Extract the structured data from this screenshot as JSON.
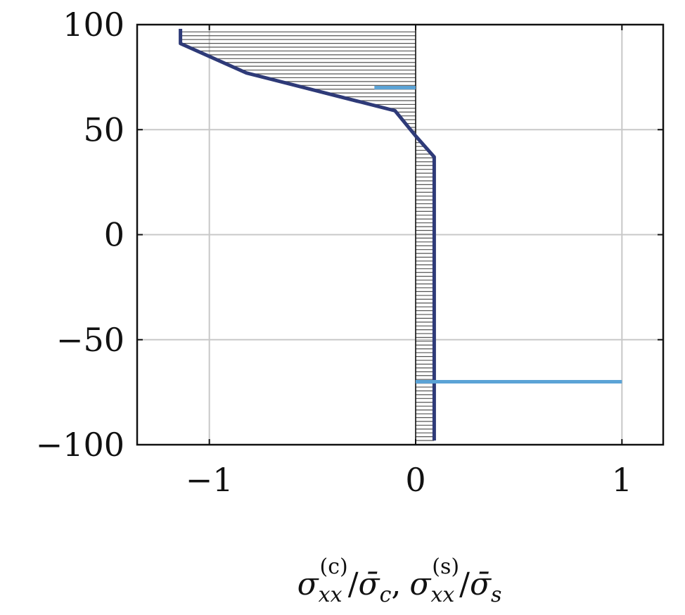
{
  "chart_data": {
    "type": "line",
    "title": "",
    "xlabel": "σ_xx^(c)/σ̄_c, σ_xx^(s)/σ̄_s",
    "ylabel": "",
    "xlim": [
      -1.35,
      1.2
    ],
    "ylim": [
      -100,
      100
    ],
    "grid": true,
    "x_ticks": [
      -1,
      0,
      1
    ],
    "x_tick_labels": [
      "−1",
      "0",
      "1"
    ],
    "y_ticks": [
      -100,
      -50,
      0,
      50,
      100
    ],
    "y_tick_labels": [
      "−100",
      "−50",
      "0",
      "50",
      "100"
    ],
    "xlabel_parts": {
      "sym1": "σ",
      "sub1": "xx",
      "sup1": "(c)",
      "slash1": "/",
      "bar1": "σ̄",
      "barsub1": "c",
      "comma": ",",
      "sym2": "σ",
      "sub2": "xx",
      "sup2": "(s)",
      "slash2": "/",
      "bar2": "σ̄",
      "barsub2": "s"
    },
    "series": [
      {
        "color": "#2e3a78",
        "style": "solid",
        "hatched_to_zero": true,
        "points": [
          [
            -1.14,
            98
          ],
          [
            -1.14,
            91
          ],
          [
            -0.82,
            77
          ],
          [
            -0.1,
            59
          ],
          [
            0.0,
            47
          ],
          [
            0.09,
            37
          ],
          [
            0.09,
            -98
          ]
        ]
      },
      {
        "color": "#5ba3d6",
        "style": "solid",
        "segments": [
          [
            [
              -0.2,
              70
            ],
            [
              0.0,
              70
            ]
          ],
          [
            [
              0.0,
              -70
            ],
            [
              1.0,
              -70
            ]
          ]
        ]
      }
    ],
    "colors": {
      "concrete": "#2e3a78",
      "steel": "#5ba3d6",
      "grid": "#c8c8c8",
      "hatch": "#555555"
    }
  }
}
